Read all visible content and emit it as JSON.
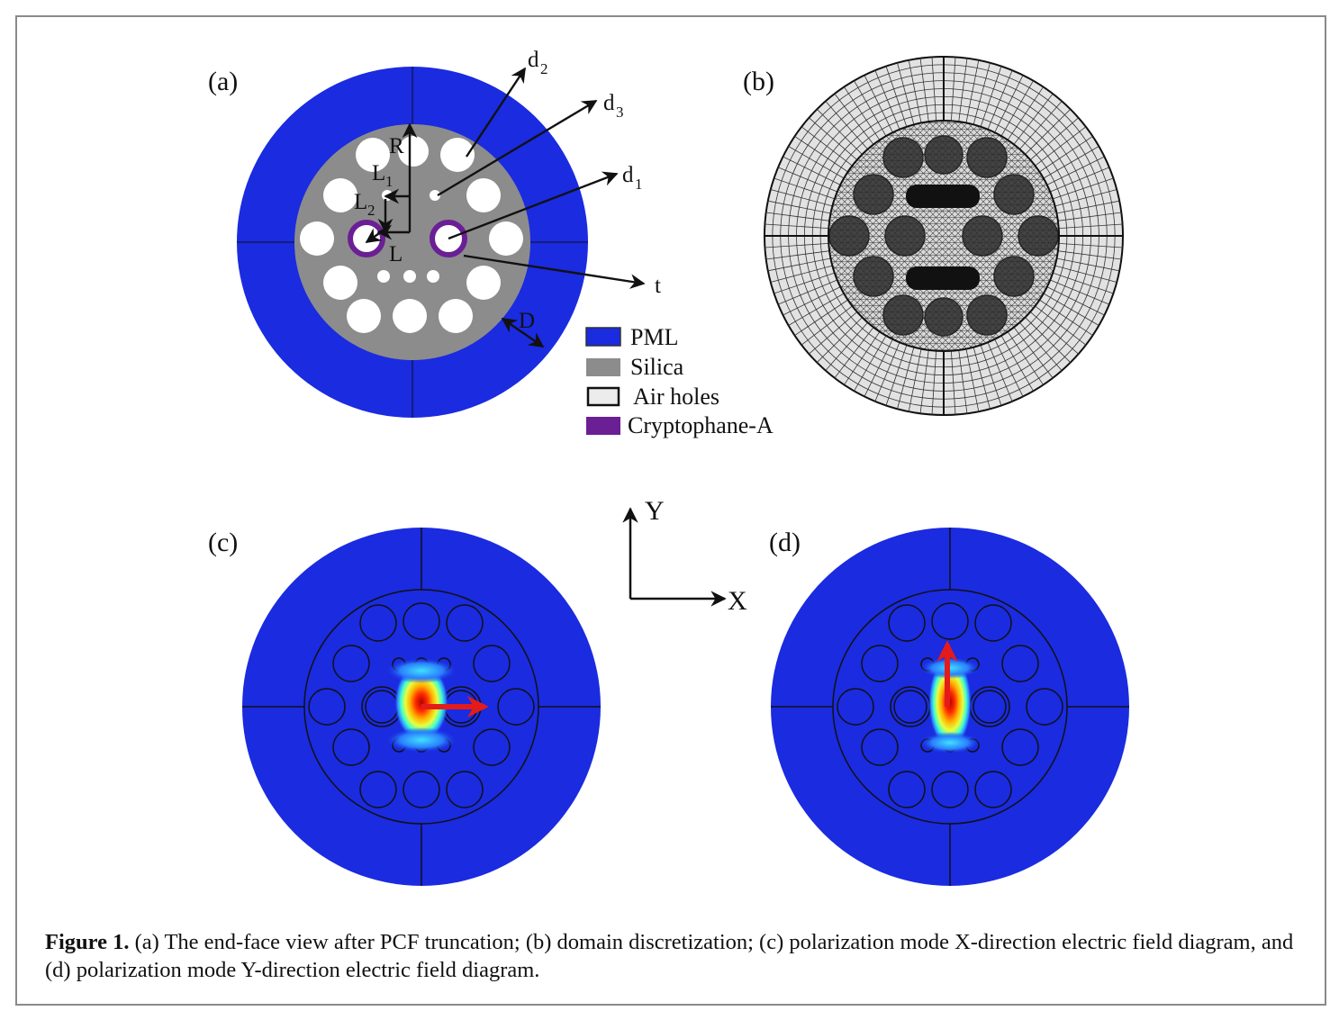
{
  "panels": {
    "a": "(a)",
    "b": "(b)",
    "c": "(c)",
    "d": "(d)"
  },
  "labels": {
    "R": "R",
    "L1": "L",
    "L1_sub": "1",
    "L2": "L",
    "L2_sub": "2",
    "L": "L",
    "d1": "d",
    "d1_sub": "1",
    "d2": "d",
    "d2_sub": "2",
    "d3": "d",
    "d3_sub": "3",
    "t": "t",
    "D": "D"
  },
  "legend": [
    {
      "label": "PML",
      "color": "#1a2be0"
    },
    {
      "label": "Silica",
      "color": "#8c8c8c"
    },
    {
      "label": "Air holes",
      "color": "#ececec"
    },
    {
      "label": "Cryptophane-A",
      "color": "#6a1f95"
    }
  ],
  "axes": {
    "x": "X",
    "y": "Y"
  },
  "colors": {
    "pml": "#1a2be0",
    "silica": "#8c8c8c",
    "cryptophane": "#6a1f95",
    "mesh": "#e2e2e2",
    "field_blue": "#1a2be0",
    "arrow_red": "#e41b1b"
  },
  "caption": {
    "lead": "Figure 1.",
    "text": " (a) The end-face view after PCF truncation; (b) domain discretization; (c) polarization mode X-direction electric field diagram, and (d) polarization mode Y-direction electric field diagram."
  }
}
